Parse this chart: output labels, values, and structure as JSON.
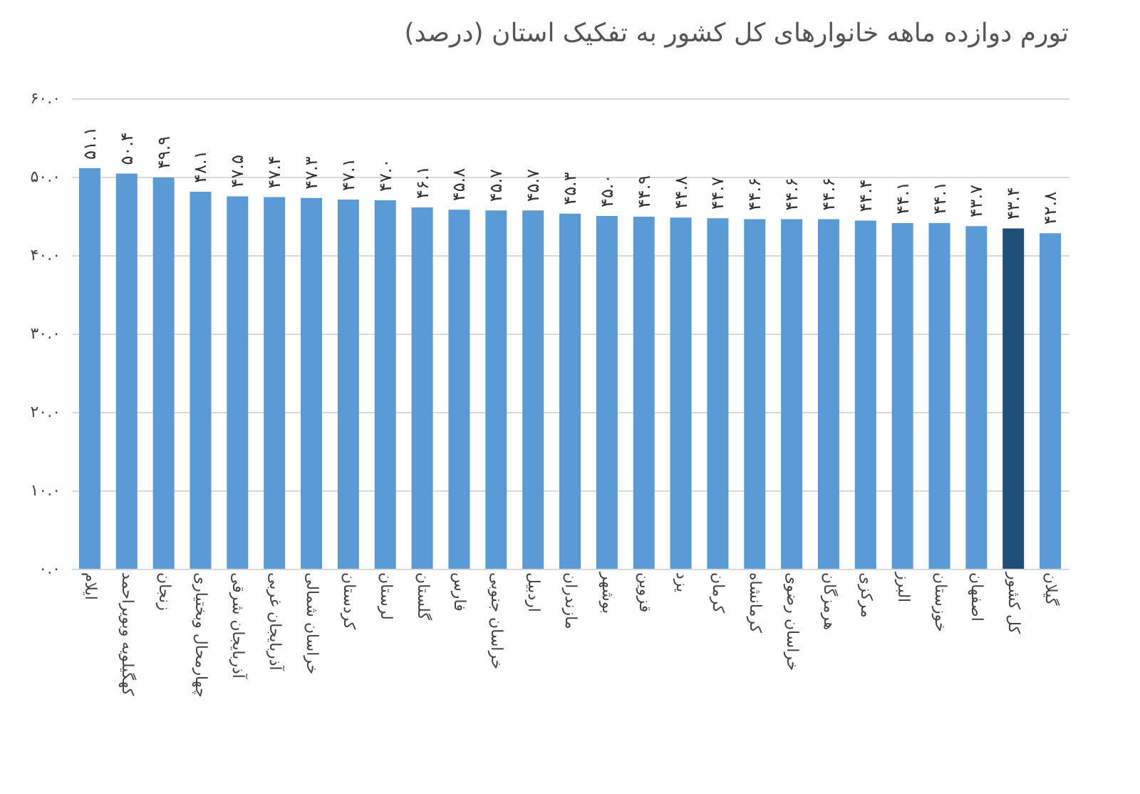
{
  "chart_data": {
    "type": "bar",
    "title": "تورم دوازده ماهه خانوارهای کل کشور به تفکیک استان (درصد)",
    "categories": [
      "ایلام",
      "کهگیلویه وبویراحمد",
      "زنجان",
      "چهارمحال وبختیاری",
      "آذربایجان شرقی",
      "آذربایجان غربی",
      "خراسان شمالی",
      "کردستان",
      "لرستان",
      "گلستان",
      "فارس",
      "خراسان جنوبی",
      "اردبیل",
      "مازندران",
      "بوشهر",
      "قزوین",
      "یزد",
      "کرمان",
      "کرمانشاه",
      "خراسان رضوی",
      "هرمزگان",
      "مرکزی",
      "البرز",
      "خوزستان",
      "اصفهان",
      "کل کشور",
      "گیلان"
    ],
    "values": [
      51.1,
      50.4,
      49.9,
      48.1,
      47.5,
      47.4,
      47.3,
      47.1,
      47.0,
      46.1,
      45.8,
      45.7,
      45.7,
      45.3,
      45.0,
      44.9,
      44.8,
      44.7,
      44.6,
      44.6,
      44.6,
      44.4,
      44.1,
      44.1,
      43.7,
      43.4,
      42.8
    ],
    "value_labels": [
      "۵۱.۱",
      "۵۰.۴",
      "۴۹.۹",
      "۴۸.۱",
      "۴۷.۵",
      "۴۷.۴",
      "۴۷.۳",
      "۴۷.۱",
      "۴۷.۰",
      "۴۶.۱",
      "۴۵.۸",
      "۴۵.۷",
      "۴۵.۷",
      "۴۵.۳",
      "۴۵.۰",
      "۴۴.۹",
      "۴۴.۸",
      "۴۴.۷",
      "۴۴.۶",
      "۴۴.۶",
      "۴۴.۶",
      "۴۴.۴",
      "۴۴.۱",
      "۴۴.۱",
      "۴۳.۷",
      "۴۳.۴",
      "۴۲.۸"
    ],
    "colors": [
      "#5b9bd5",
      "#5b9bd5",
      "#5b9bd5",
      "#5b9bd5",
      "#5b9bd5",
      "#5b9bd5",
      "#5b9bd5",
      "#5b9bd5",
      "#5b9bd5",
      "#5b9bd5",
      "#5b9bd5",
      "#5b9bd5",
      "#5b9bd5",
      "#5b9bd5",
      "#5b9bd5",
      "#5b9bd5",
      "#5b9bd5",
      "#5b9bd5",
      "#5b9bd5",
      "#5b9bd5",
      "#5b9bd5",
      "#5b9bd5",
      "#5b9bd5",
      "#5b9bd5",
      "#5b9bd5",
      "#1f4e79",
      "#5b9bd5"
    ],
    "ylim": [
      0,
      60
    ],
    "yticks": [
      {
        "value": 0,
        "label": "۰.۰"
      },
      {
        "value": 10,
        "label": "۱۰.۰"
      },
      {
        "value": 20,
        "label": "۲۰.۰"
      },
      {
        "value": 30,
        "label": "۳۰.۰"
      },
      {
        "value": 40,
        "label": "۴۰.۰"
      },
      {
        "value": 50,
        "label": "۵۰.۰"
      },
      {
        "value": 60,
        "label": "۶۰.۰"
      }
    ],
    "grid": "y"
  }
}
